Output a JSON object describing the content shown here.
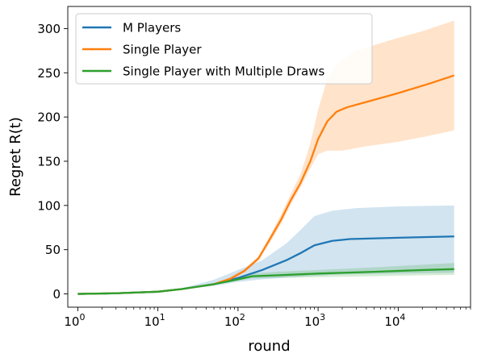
{
  "chart_data": {
    "type": "line",
    "xlabel": "round",
    "ylabel": "Regret R(t)",
    "xscale": "log",
    "xlim": [
      0.75,
      80000
    ],
    "ylim": [
      -15,
      325
    ],
    "x_ticks": [
      {
        "value": 1,
        "base": "10",
        "exp": "0"
      },
      {
        "value": 10,
        "base": "10",
        "exp": "1"
      },
      {
        "value": 100,
        "base": "10",
        "exp": "2"
      },
      {
        "value": 1000,
        "base": "10",
        "exp": "3"
      },
      {
        "value": 10000,
        "base": "10",
        "exp": "4"
      }
    ],
    "y_ticks": [
      0,
      50,
      100,
      150,
      200,
      250,
      300
    ],
    "legend_position": "top-left",
    "grid": false,
    "series": [
      {
        "name": "M Players",
        "color": "#1f77b4",
        "band_color": "#1f77b4",
        "band_opacity": 0.2,
        "points": [
          [
            1,
            0
          ],
          [
            3,
            0.7
          ],
          [
            10,
            2.5
          ],
          [
            20,
            5.5
          ],
          [
            50,
            11
          ],
          [
            100,
            18
          ],
          [
            200,
            27
          ],
          [
            400,
            38
          ],
          [
            600,
            46
          ],
          [
            900,
            55
          ],
          [
            1500,
            60
          ],
          [
            2500,
            62
          ],
          [
            10000,
            63.5
          ],
          [
            50000,
            65
          ]
        ],
        "lower": [
          [
            1,
            0
          ],
          [
            3,
            0.6
          ],
          [
            10,
            2.2
          ],
          [
            20,
            5
          ],
          [
            50,
            9
          ],
          [
            100,
            13.5
          ],
          [
            200,
            16.5
          ],
          [
            400,
            18.5
          ],
          [
            900,
            20.5
          ],
          [
            2000,
            22
          ],
          [
            10000,
            23
          ],
          [
            50000,
            24
          ]
        ],
        "upper": [
          [
            1,
            0
          ],
          [
            3,
            0.8
          ],
          [
            10,
            2.8
          ],
          [
            20,
            6.5
          ],
          [
            50,
            16
          ],
          [
            100,
            27
          ],
          [
            200,
            38
          ],
          [
            400,
            57
          ],
          [
            600,
            72
          ],
          [
            900,
            88
          ],
          [
            1500,
            94
          ],
          [
            3000,
            97
          ],
          [
            10000,
            99
          ],
          [
            50000,
            100
          ]
        ]
      },
      {
        "name": "Single Player",
        "color": "#ff7f0e",
        "band_color": "#ff7f0e",
        "band_opacity": 0.22,
        "points": [
          [
            1,
            0
          ],
          [
            3,
            0.7
          ],
          [
            10,
            2.5
          ],
          [
            20,
            5.5
          ],
          [
            50,
            11
          ],
          [
            80,
            17
          ],
          [
            120,
            26
          ],
          [
            180,
            40
          ],
          [
            250,
            62
          ],
          [
            350,
            85
          ],
          [
            450,
            105
          ],
          [
            600,
            125
          ],
          [
            800,
            150
          ],
          [
            1000,
            175
          ],
          [
            1300,
            195
          ],
          [
            1700,
            206
          ],
          [
            2300,
            211
          ],
          [
            4000,
            217
          ],
          [
            10000,
            227
          ],
          [
            25000,
            238
          ],
          [
            50000,
            247
          ]
        ],
        "lower": [
          [
            1,
            0
          ],
          [
            3,
            0.6
          ],
          [
            10,
            2.2
          ],
          [
            20,
            5
          ],
          [
            50,
            10
          ],
          [
            80,
            15
          ],
          [
            120,
            24
          ],
          [
            180,
            38
          ],
          [
            250,
            58
          ],
          [
            350,
            80
          ],
          [
            450,
            100
          ],
          [
            600,
            120
          ],
          [
            800,
            142
          ],
          [
            1000,
            158
          ],
          [
            1300,
            162
          ],
          [
            2000,
            162
          ],
          [
            4000,
            167
          ],
          [
            10000,
            172
          ],
          [
            25000,
            179
          ],
          [
            50000,
            185
          ]
        ],
        "upper": [
          [
            1,
            0
          ],
          [
            3,
            0.8
          ],
          [
            10,
            2.8
          ],
          [
            20,
            6
          ],
          [
            50,
            12
          ],
          [
            80,
            19
          ],
          [
            120,
            28
          ],
          [
            180,
            43
          ],
          [
            250,
            66
          ],
          [
            350,
            91
          ],
          [
            450,
            112
          ],
          [
            600,
            135
          ],
          [
            800,
            170
          ],
          [
            1000,
            208
          ],
          [
            1300,
            243
          ],
          [
            1800,
            262
          ],
          [
            3000,
            275
          ],
          [
            8000,
            287
          ],
          [
            20000,
            297
          ],
          [
            50000,
            309
          ]
        ]
      },
      {
        "name": "Single Player with Multiple Draws",
        "color": "#2ca02c",
        "band_color": "#2ca02c",
        "band_opacity": 0.2,
        "points": [
          [
            1,
            0
          ],
          [
            3,
            0.7
          ],
          [
            10,
            2.5
          ],
          [
            20,
            5.5
          ],
          [
            50,
            11
          ],
          [
            100,
            16.5
          ],
          [
            150,
            20
          ],
          [
            300,
            21
          ],
          [
            1000,
            23
          ],
          [
            5000,
            25
          ],
          [
            20000,
            27
          ],
          [
            50000,
            28
          ]
        ],
        "lower": [
          [
            1,
            0
          ],
          [
            3,
            0.6
          ],
          [
            10,
            2.2
          ],
          [
            20,
            5
          ],
          [
            50,
            10
          ],
          [
            100,
            15
          ],
          [
            150,
            17.5
          ],
          [
            300,
            18
          ],
          [
            1000,
            19
          ],
          [
            5000,
            20
          ],
          [
            20000,
            21
          ],
          [
            50000,
            21.5
          ]
        ],
        "upper": [
          [
            1,
            0
          ],
          [
            3,
            0.8
          ],
          [
            10,
            2.8
          ],
          [
            20,
            6
          ],
          [
            50,
            12
          ],
          [
            100,
            18
          ],
          [
            150,
            23
          ],
          [
            300,
            25
          ],
          [
            1000,
            27
          ],
          [
            5000,
            30
          ],
          [
            20000,
            33
          ],
          [
            50000,
            35
          ]
        ]
      }
    ]
  }
}
